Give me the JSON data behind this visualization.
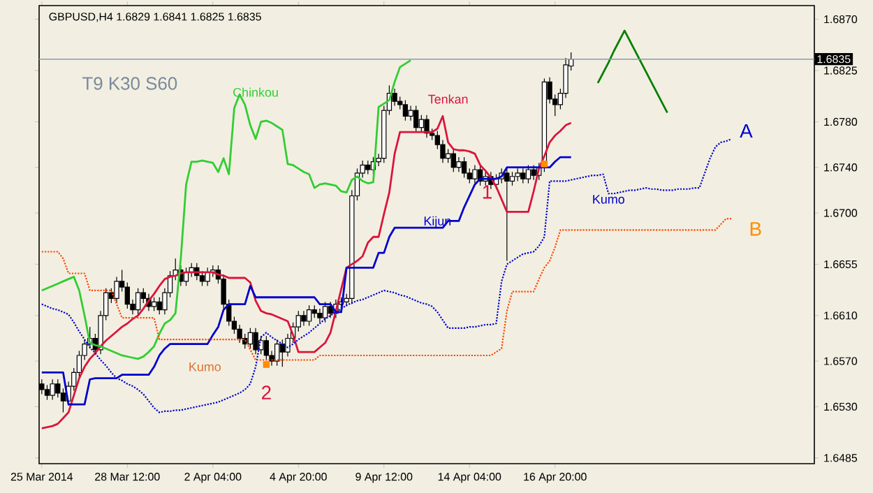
{
  "chart_data": {
    "type": "candlestick",
    "title": "GBPUSD,H4  1.6829 1.6841 1.6825 1.6835",
    "categories": [
      "25 Mar 2014",
      null,
      null,
      null,
      null,
      null,
      null,
      null,
      null,
      null,
      null,
      null,
      null,
      null,
      null,
      null,
      "28 Mar 12:00",
      null,
      null,
      null,
      null,
      null,
      null,
      null,
      null,
      null,
      null,
      null,
      null,
      null,
      null,
      null,
      "2 Apr 04:00",
      null,
      null,
      null,
      null,
      null,
      null,
      null,
      null,
      null,
      null,
      null,
      null,
      null,
      null,
      null,
      "4 Apr 20:00",
      null,
      null,
      null,
      null,
      null,
      null,
      null,
      null,
      null,
      null,
      null,
      null,
      null,
      null,
      null,
      "9 Apr 12:00",
      null,
      null,
      null,
      null,
      null,
      null,
      null,
      null,
      null,
      null,
      null,
      null,
      null,
      null,
      null,
      "14 Apr 04:00",
      null,
      null,
      null,
      null,
      null,
      null,
      null,
      null,
      null,
      null,
      null,
      null,
      null,
      null,
      null,
      "16 Apr 20:00",
      null,
      null,
      null,
      null,
      null,
      null,
      null,
      null,
      null,
      null,
      null,
      null,
      null,
      null,
      null,
      null,
      null,
      null,
      null,
      null,
      null,
      null,
      null,
      null,
      null,
      null,
      null,
      null,
      null,
      null,
      null,
      null,
      null,
      null,
      null,
      null,
      null,
      null,
      null,
      null,
      null,
      null,
      null,
      null,
      null,
      null,
      null,
      null
    ],
    "ohlc": [
      [
        1.655,
        1.6554,
        1.6541,
        1.6545
      ],
      [
        1.6545,
        1.6549,
        1.6536,
        1.654
      ],
      [
        1.654,
        1.6554,
        1.6536,
        1.655
      ],
      [
        1.655,
        1.6554,
        1.6538,
        1.6542
      ],
      [
        1.6542,
        1.6546,
        1.6525,
        1.6535
      ],
      [
        1.6535,
        1.6552,
        1.6531,
        1.6548
      ],
      [
        1.6548,
        1.6564,
        1.6544,
        1.656
      ],
      [
        1.656,
        1.6579,
        1.6556,
        1.6575
      ],
      [
        1.6575,
        1.6589,
        1.6571,
        1.6585
      ],
      [
        1.6585,
        1.66,
        1.6581,
        1.659
      ],
      [
        1.659,
        1.6594,
        1.6576,
        1.658
      ],
      [
        1.658,
        1.6614,
        1.6576,
        1.661
      ],
      [
        1.661,
        1.6634,
        1.6606,
        1.663
      ],
      [
        1.663,
        1.6634,
        1.6621,
        1.6625
      ],
      [
        1.6625,
        1.6644,
        1.6621,
        1.664
      ],
      [
        1.664,
        1.665,
        1.6631,
        1.6635
      ],
      [
        1.6635,
        1.6639,
        1.6616,
        1.662
      ],
      [
        1.662,
        1.6624,
        1.6611,
        1.6615
      ],
      [
        1.6615,
        1.6634,
        1.6611,
        1.663
      ],
      [
        1.663,
        1.6634,
        1.6621,
        1.6625
      ],
      [
        1.6625,
        1.6629,
        1.6614,
        1.6618
      ],
      [
        1.6618,
        1.6626,
        1.6614,
        1.6622
      ],
      [
        1.6622,
        1.6626,
        1.6611,
        1.6615
      ],
      [
        1.6615,
        1.6634,
        1.6611,
        1.663
      ],
      [
        1.663,
        1.6649,
        1.6626,
        1.6645
      ],
      [
        1.6645,
        1.666,
        1.6641,
        1.665
      ],
      [
        1.665,
        1.6654,
        1.6636,
        1.664
      ],
      [
        1.664,
        1.6652,
        1.6636,
        1.6648
      ],
      [
        1.6648,
        1.6656,
        1.6644,
        1.6652
      ],
      [
        1.6652,
        1.6656,
        1.6641,
        1.6645
      ],
      [
        1.6645,
        1.6649,
        1.6636,
        1.664
      ],
      [
        1.664,
        1.6652,
        1.6636,
        1.6648
      ],
      [
        1.6648,
        1.6654,
        1.6644,
        1.665
      ],
      [
        1.665,
        1.6654,
        1.6638,
        1.6642
      ],
      [
        1.6642,
        1.6646,
        1.6616,
        1.662
      ],
      [
        1.662,
        1.6624,
        1.6601,
        1.6605
      ],
      [
        1.6605,
        1.6609,
        1.6594,
        1.6598
      ],
      [
        1.6598,
        1.6602,
        1.6586,
        1.659
      ],
      [
        1.659,
        1.6594,
        1.6581,
        1.6585
      ],
      [
        1.6585,
        1.6599,
        1.6581,
        1.6595
      ],
      [
        1.6595,
        1.6599,
        1.6576,
        1.658
      ],
      [
        1.658,
        1.6592,
        1.6576,
        1.6588
      ],
      [
        1.6588,
        1.6592,
        1.6571,
        1.6575
      ],
      [
        1.6575,
        1.6579,
        1.6566,
        1.657
      ],
      [
        1.657,
        1.6589,
        1.6566,
        1.6585
      ],
      [
        1.6585,
        1.6589,
        1.6565,
        1.6578
      ],
      [
        1.6578,
        1.6594,
        1.6574,
        1.659
      ],
      [
        1.659,
        1.6604,
        1.6586,
        1.66
      ],
      [
        1.66,
        1.6614,
        1.6596,
        1.661
      ],
      [
        1.661,
        1.6614,
        1.6601,
        1.6605
      ],
      [
        1.6605,
        1.6619,
        1.6601,
        1.6615
      ],
      [
        1.6615,
        1.6619,
        1.6608,
        1.6612
      ],
      [
        1.6612,
        1.6616,
        1.6604,
        1.6608
      ],
      [
        1.6608,
        1.6622,
        1.6604,
        1.6618
      ],
      [
        1.6618,
        1.6622,
        1.6608,
        1.6612
      ],
      [
        1.6612,
        1.6624,
        1.6608,
        1.662
      ],
      [
        1.662,
        1.6626,
        1.6616,
        1.6622
      ],
      [
        1.6622,
        1.6629,
        1.6618,
        1.6625
      ],
      [
        1.6625,
        1.672,
        1.662,
        1.6715
      ],
      [
        1.6715,
        1.6739,
        1.6711,
        1.6735
      ],
      [
        1.6735,
        1.6746,
        1.6731,
        1.6742
      ],
      [
        1.6742,
        1.6746,
        1.6734,
        1.6738
      ],
      [
        1.6738,
        1.6749,
        1.6734,
        1.6745
      ],
      [
        1.6745,
        1.6752,
        1.6741,
        1.6748
      ],
      [
        1.6748,
        1.6794,
        1.6744,
        1.679
      ],
      [
        1.679,
        1.6812,
        1.6786,
        1.6805
      ],
      [
        1.6805,
        1.6809,
        1.6794,
        1.6798
      ],
      [
        1.6798,
        1.6802,
        1.6791,
        1.6795
      ],
      [
        1.6795,
        1.6799,
        1.6781,
        1.6785
      ],
      [
        1.6785,
        1.6794,
        1.6781,
        1.679
      ],
      [
        1.679,
        1.6794,
        1.6771,
        1.6775
      ],
      [
        1.6775,
        1.6786,
        1.6771,
        1.6782
      ],
      [
        1.6782,
        1.6786,
        1.6766,
        1.677
      ],
      [
        1.677,
        1.6774,
        1.6764,
        1.6768
      ],
      [
        1.6768,
        1.6772,
        1.6756,
        1.676
      ],
      [
        1.676,
        1.6764,
        1.6744,
        1.6748
      ],
      [
        1.6748,
        1.6756,
        1.6744,
        1.6752
      ],
      [
        1.6752,
        1.6756,
        1.6736,
        1.674
      ],
      [
        1.674,
        1.6749,
        1.6736,
        1.6745
      ],
      [
        1.6745,
        1.6749,
        1.6731,
        1.6735
      ],
      [
        1.6735,
        1.6739,
        1.6726,
        1.673
      ],
      [
        1.673,
        1.6742,
        1.6726,
        1.6738
      ],
      [
        1.6738,
        1.6742,
        1.6724,
        1.6728
      ],
      [
        1.6728,
        1.6736,
        1.6724,
        1.6732
      ],
      [
        1.6732,
        1.6736,
        1.6721,
        1.6725
      ],
      [
        1.6725,
        1.6734,
        1.6721,
        1.673
      ],
      [
        1.673,
        1.6739,
        1.6726,
        1.6735
      ],
      [
        1.6735,
        1.6739,
        1.6658,
        1.6728
      ],
      [
        1.6728,
        1.6736,
        1.6724,
        1.6732
      ],
      [
        1.6732,
        1.6739,
        1.6728,
        1.6735
      ],
      [
        1.6735,
        1.6739,
        1.6726,
        1.673
      ],
      [
        1.673,
        1.6742,
        1.6726,
        1.6738
      ],
      [
        1.6738,
        1.6742,
        1.6729,
        1.6733
      ],
      [
        1.6733,
        1.6744,
        1.6729,
        1.674
      ],
      [
        1.674,
        1.6818,
        1.6736,
        1.6815
      ],
      [
        1.6815,
        1.6819,
        1.6796,
        1.68
      ],
      [
        1.68,
        1.6804,
        1.6785,
        1.6795
      ],
      [
        1.6795,
        1.6809,
        1.6791,
        1.6805
      ],
      [
        1.6805,
        1.6836,
        1.6801,
        1.683
      ],
      [
        1.6829,
        1.6841,
        1.6825,
        1.6835
      ],
      null,
      null,
      null,
      null,
      null,
      null,
      null,
      null,
      null,
      null,
      null,
      null,
      null,
      null,
      null,
      null,
      null,
      null,
      null,
      null,
      null,
      null,
      null,
      null,
      null,
      null,
      null,
      null,
      null,
      null,
      null,
      null,
      null,
      null,
      null,
      null,
      null,
      null,
      null,
      null,
      null,
      null,
      null,
      null,
      null
    ],
    "series": [
      {
        "type": "line",
        "color": "#dc143c",
        "values": [
          1.6511,
          1.6512,
          1.6513,
          1.6515,
          1.652,
          1.6525,
          1.654,
          1.6555,
          1.6565,
          1.6572,
          1.6577,
          1.6583,
          1.6588,
          1.6592,
          1.6596,
          1.66,
          1.6603,
          1.6607,
          1.661,
          1.6616,
          1.6623,
          1.6629,
          1.6636,
          1.6642,
          1.6644,
          1.6645,
          1.6647,
          1.6648,
          1.6648,
          1.6648,
          1.6648,
          1.6648,
          1.6648,
          1.6646,
          1.6645,
          1.6643,
          1.6643,
          1.6643,
          1.6643,
          1.6639,
          1.6623,
          1.6614,
          1.6612,
          1.6611,
          1.6609,
          1.6607,
          1.6605,
          1.6593,
          1.6578,
          1.6578,
          1.6578,
          1.6578,
          1.6582,
          1.6586,
          1.6595,
          1.6614,
          1.6633,
          1.6652,
          1.6655,
          1.6658,
          1.6662,
          1.6674,
          1.6679,
          1.6679,
          1.6699,
          1.6718,
          1.6752,
          1.6771,
          1.6771,
          1.6771,
          1.6771,
          1.6771,
          1.6771,
          1.6771,
          1.6774,
          1.6785,
          1.6762,
          1.6756,
          1.6755,
          1.6755,
          1.6754,
          1.6752,
          1.6742,
          1.6737,
          1.6731,
          1.6723,
          1.6712,
          1.6701,
          1.6701,
          1.6701,
          1.6701,
          1.6701,
          1.6719,
          1.6739,
          1.675,
          1.6762,
          1.6768,
          1.6772,
          1.6777,
          1.6779,
          null,
          null,
          null,
          null,
          null,
          null,
          null,
          null,
          null,
          null,
          null,
          null,
          null,
          null,
          null,
          null,
          null,
          null,
          null,
          null,
          null,
          null,
          null,
          null,
          null,
          null,
          null,
          null,
          null,
          null,
          null,
          null,
          null,
          null,
          null,
          null,
          null,
          null,
          null,
          null,
          null,
          null,
          null,
          null,
          null
        ]
      },
      {
        "type": "line",
        "color": "#0000cd",
        "values": [
          1.656,
          1.656,
          1.656,
          1.656,
          1.656,
          1.6532,
          1.6532,
          1.6532,
          1.6532,
          1.6554,
          1.6555,
          1.6555,
          1.6555,
          1.6555,
          1.6555,
          1.6558,
          1.6558,
          1.6558,
          1.6558,
          1.6558,
          1.6558,
          1.6565,
          1.6575,
          1.6581,
          1.6585,
          1.6585,
          1.6585,
          1.6585,
          1.6585,
          1.6585,
          1.6585,
          1.6585,
          1.6593,
          1.66,
          1.6615,
          1.662,
          1.662,
          1.662,
          1.662,
          1.6636,
          1.6626,
          1.6626,
          1.6626,
          1.6626,
          1.6626,
          1.6626,
          1.6626,
          1.6626,
          1.6626,
          1.6626,
          1.6626,
          1.6626,
          1.662,
          1.662,
          1.662,
          1.6613,
          1.6613,
          1.6652,
          1.6652,
          1.6652,
          1.6652,
          1.6652,
          1.6652,
          1.6665,
          1.6665,
          1.6679,
          1.6687,
          1.6687,
          1.6687,
          1.6687,
          1.6687,
          1.6687,
          1.6687,
          1.6687,
          1.6687,
          1.6687,
          1.6693,
          1.6693,
          1.6693,
          1.6705,
          1.6715,
          1.6725,
          1.673,
          1.673,
          1.673,
          1.673,
          1.6732,
          1.674,
          1.674,
          1.674,
          1.674,
          1.674,
          1.674,
          1.674,
          1.674,
          1.674,
          1.6745,
          1.6749,
          1.6749,
          1.6749,
          null,
          null,
          null,
          null,
          null,
          null,
          null,
          null,
          null,
          null,
          null,
          null,
          null,
          null,
          null,
          null,
          null,
          null,
          null,
          null,
          null,
          null,
          null,
          null,
          null,
          null,
          null,
          null,
          null,
          null,
          null,
          null,
          null,
          null,
          null,
          null,
          null,
          null,
          null,
          null,
          null,
          null,
          null,
          null,
          null
        ]
      },
      {
        "type": "line",
        "color": "#32cd32",
        "values": [
          1.6632,
          1.6634,
          1.6636,
          1.6638,
          1.664,
          1.6642,
          1.6644,
          1.6632,
          1.661,
          1.6586,
          1.6584,
          1.6583,
          1.6581,
          1.6579,
          1.6577,
          1.6575,
          1.6574,
          1.6573,
          1.6572,
          1.6574,
          1.6578,
          1.6583,
          1.6594,
          1.6603,
          1.6606,
          1.6612,
          1.666,
          1.6725,
          1.6745,
          1.6745,
          1.6746,
          1.6745,
          1.6744,
          1.6736,
          1.6748,
          1.6734,
          1.6792,
          1.6804,
          1.6795,
          1.6777,
          1.6765,
          1.678,
          1.6781,
          1.6779,
          1.6776,
          1.6773,
          1.6743,
          1.6742,
          1.6739,
          1.6736,
          1.6734,
          1.6722,
          1.6725,
          1.6726,
          1.6725,
          1.6724,
          1.6719,
          1.6718,
          1.6729,
          1.6732,
          1.6728,
          1.6726,
          1.6727,
          1.6793,
          1.6796,
          1.6799,
          1.6815,
          1.6828,
          1.6831,
          1.6834,
          null,
          null,
          null,
          null,
          null,
          null,
          null,
          null,
          null,
          null,
          null,
          null,
          null,
          null,
          null,
          null,
          null,
          null,
          null,
          null,
          null,
          null,
          null,
          null,
          null,
          null,
          null,
          null,
          null,
          null,
          null,
          null,
          null,
          null,
          null,
          null,
          null,
          null,
          null,
          null,
          null,
          null,
          null,
          null,
          null,
          null,
          null,
          null,
          null,
          null,
          null,
          null,
          null,
          null,
          null,
          null,
          null,
          null,
          null,
          null,
          null,
          null,
          null,
          null,
          null,
          null,
          null,
          null,
          null,
          null,
          null,
          null,
          null,
          null,
          null
        ]
      },
      {
        "type": "line",
        "color": "#0000cd",
        "line_style": "dotted",
        "values": [
          1.662,
          1.6618,
          1.6616,
          1.6615,
          1.6613,
          1.6611,
          1.6604,
          1.6596,
          1.6589,
          1.6582,
          1.6577,
          1.6571,
          1.6566,
          1.656,
          1.6555,
          1.6553,
          1.655,
          1.6548,
          1.6545,
          1.6541,
          1.6535,
          1.6529,
          1.6525,
          1.6526,
          1.6526,
          1.6527,
          1.6527,
          1.6528,
          1.6529,
          1.653,
          1.6531,
          1.6532,
          1.6533,
          1.6534,
          1.6536,
          1.6538,
          1.654,
          1.6542,
          1.6545,
          1.655,
          1.6565,
          1.6591,
          1.6595,
          1.6591,
          1.6588,
          1.6585,
          1.6582,
          1.6585,
          1.6589,
          1.6592,
          1.6595,
          1.6599,
          1.6603,
          1.6607,
          1.661,
          1.6613,
          1.6616,
          1.6619,
          1.6621,
          1.6623,
          1.6624,
          1.6626,
          1.6628,
          1.663,
          1.6632,
          1.6631,
          1.663,
          1.6628,
          1.6627,
          1.6625,
          1.6623,
          1.6621,
          1.662,
          1.6618,
          1.6613,
          1.6606,
          1.6599,
          1.6599,
          1.6599,
          1.6599,
          1.66,
          1.66,
          1.6601,
          1.6602,
          1.6602,
          1.6603,
          1.664,
          1.6655,
          1.6658,
          1.6661,
          1.6664,
          1.6665,
          1.6666,
          1.6671,
          1.6679,
          1.6728,
          1.6728,
          1.6728,
          1.6728,
          1.6729,
          1.673,
          1.6731,
          1.6732,
          1.6733,
          1.6733,
          1.6734,
          1.6717,
          1.6717,
          1.6718,
          1.6719,
          1.672,
          1.672,
          1.6721,
          1.6722,
          1.6721,
          1.6721,
          1.672,
          1.672,
          1.672,
          1.6721,
          1.6721,
          1.6721,
          1.6722,
          1.6722,
          1.6735,
          1.6748,
          1.6758,
          1.6762,
          1.6763,
          1.6765,
          null,
          null,
          null,
          null,
          null,
          null,
          null,
          null,
          null,
          null,
          null,
          null,
          null,
          null,
          null
        ]
      },
      {
        "type": "line",
        "color": "#ff4500",
        "line_style": "dotted",
        "values": [
          1.6666,
          1.6666,
          1.6666,
          1.6666,
          1.666,
          1.6647,
          1.6647,
          1.6647,
          1.6647,
          1.6632,
          1.6632,
          1.6632,
          1.6632,
          1.6632,
          1.662,
          1.6608,
          1.6608,
          1.6608,
          1.6608,
          1.6608,
          1.6608,
          1.6608,
          1.6589,
          1.6589,
          1.6589,
          1.6589,
          1.6589,
          1.6589,
          1.6589,
          1.6589,
          1.6589,
          1.6589,
          1.6589,
          1.6589,
          1.6589,
          1.6589,
          1.6589,
          1.6589,
          1.6589,
          1.658,
          1.6571,
          1.6571,
          1.6571,
          1.6571,
          1.6571,
          1.6571,
          1.6571,
          1.6571,
          1.6571,
          1.6571,
          1.6571,
          1.6571,
          1.6575,
          1.6575,
          1.6575,
          1.6575,
          1.6575,
          1.6575,
          1.6575,
          1.6575,
          1.6575,
          1.6575,
          1.6575,
          1.6575,
          1.6575,
          1.6575,
          1.6575,
          1.6575,
          1.6575,
          1.6575,
          1.6575,
          1.6575,
          1.6575,
          1.6575,
          1.6575,
          1.6575,
          1.6575,
          1.6575,
          1.6575,
          1.6575,
          1.6575,
          1.6575,
          1.6575,
          1.6575,
          1.6575,
          1.6578,
          1.6581,
          1.6614,
          1.6631,
          1.6631,
          1.6631,
          1.6631,
          1.6631,
          1.6642,
          1.6652,
          1.6658,
          1.667,
          1.6685,
          1.6685,
          1.6685,
          1.6685,
          1.6685,
          1.6685,
          1.6685,
          1.6685,
          1.6685,
          1.6685,
          1.6685,
          1.6685,
          1.6685,
          1.6685,
          1.6685,
          1.6685,
          1.6685,
          1.6685,
          1.6685,
          1.6685,
          1.6685,
          1.6685,
          1.6685,
          1.6685,
          1.6685,
          1.6685,
          1.6685,
          1.6685,
          1.6685,
          1.6685,
          1.669,
          1.6695,
          1.6695,
          null,
          null,
          null,
          null,
          null,
          null,
          null,
          null,
          null,
          null,
          null,
          null,
          null,
          null,
          null
        ]
      },
      {
        "type": "line",
        "color": "#008000",
        "values": [
          null,
          null,
          null,
          null,
          null,
          null,
          null,
          null,
          null,
          null,
          null,
          null,
          null,
          null,
          null,
          null,
          null,
          null,
          null,
          null,
          null,
          null,
          null,
          null,
          null,
          null,
          null,
          null,
          null,
          null,
          null,
          null,
          null,
          null,
          null,
          null,
          null,
          null,
          null,
          null,
          null,
          null,
          null,
          null,
          null,
          null,
          null,
          null,
          null,
          null,
          null,
          null,
          null,
          null,
          null,
          null,
          null,
          null,
          null,
          null,
          null,
          null,
          null,
          null,
          null,
          null,
          null,
          null,
          null,
          null,
          null,
          null,
          null,
          null,
          null,
          null,
          null,
          null,
          null,
          null,
          null,
          null,
          null,
          null,
          null,
          null,
          null,
          null,
          null,
          null,
          null,
          null,
          null,
          null,
          null,
          null,
          null,
          null,
          null,
          null,
          null,
          null,
          null,
          null,
          1.6814,
          1.6823,
          1.6832,
          1.6842,
          1.6851,
          1.686,
          1.6851,
          1.6842,
          1.6833,
          1.6824,
          1.6815,
          1.6806,
          1.6797,
          1.6788,
          null,
          null,
          null,
          null,
          null,
          null,
          null,
          null,
          null,
          null,
          null,
          null,
          null,
          null,
          null,
          null,
          null,
          null,
          null,
          null,
          null,
          null,
          null,
          null,
          null,
          null,
          null
        ]
      },
      {
        "type": "scatter",
        "color": "#ff8c00",
        "marker": "square",
        "values": [
          null,
          null,
          null,
          null,
          null,
          null,
          null,
          null,
          null,
          null,
          null,
          null,
          null,
          null,
          null,
          null,
          null,
          null,
          null,
          null,
          null,
          null,
          null,
          null,
          null,
          null,
          null,
          null,
          null,
          null,
          null,
          null,
          null,
          null,
          null,
          null,
          null,
          null,
          null,
          null,
          null,
          null,
          1.6567,
          null,
          null,
          null,
          null,
          null,
          null,
          null,
          null,
          null,
          null,
          null,
          null,
          null,
          null,
          null,
          null,
          null,
          null,
          null,
          null,
          null,
          null,
          null,
          null,
          null,
          null,
          null,
          null,
          null,
          null,
          null,
          null,
          null,
          null,
          null,
          null,
          null,
          null,
          null,
          null,
          null,
          null,
          null,
          null,
          null,
          null,
          null,
          null,
          null,
          null,
          null,
          1.6743,
          null,
          null,
          null,
          null,
          null,
          null,
          null,
          null,
          null,
          null,
          null,
          null,
          null,
          null,
          null,
          null,
          null,
          null,
          null,
          null,
          null,
          null,
          null,
          null,
          null,
          null,
          null,
          null,
          null,
          null,
          null,
          null,
          null,
          null,
          null,
          null,
          null,
          null,
          null,
          null,
          null,
          null,
          null,
          null,
          null,
          null,
          null,
          null,
          null,
          null
        ]
      }
    ],
    "annotations": [
      "T9 K30 S60",
      "Chinkou",
      "Tenkan",
      "Kijun",
      "Kumo",
      "Kumo",
      {
        "text": "1",
        "y": 1.6743
      },
      {
        "text": "2",
        "y": 1.6567
      },
      "A",
      "B"
    ],
    "ref_lines": [
      {
        "axis": "y",
        "value": 1.6835,
        "label": "1.6835",
        "color": "#8a9aaa"
      }
    ],
    "ylim": [
      1.648,
      1.6882
    ],
    "yticks": [
      {
        "value": 1.6485,
        "label": "1.6485"
      },
      {
        "value": 1.653,
        "label": "1.6530"
      },
      {
        "value": 1.657,
        "label": "1.6570"
      },
      {
        "value": 1.661,
        "label": "1.6610"
      },
      {
        "value": 1.6655,
        "label": "1.6655"
      },
      {
        "value": 1.67,
        "label": "1.6700"
      },
      {
        "value": 1.674,
        "label": "1.6740"
      },
      {
        "value": 1.678,
        "label": "1.6780"
      },
      {
        "value": 1.6825,
        "label": "1.6825"
      },
      {
        "value": 1.687,
        "label": "1.6870"
      }
    ],
    "grid": false
  }
}
